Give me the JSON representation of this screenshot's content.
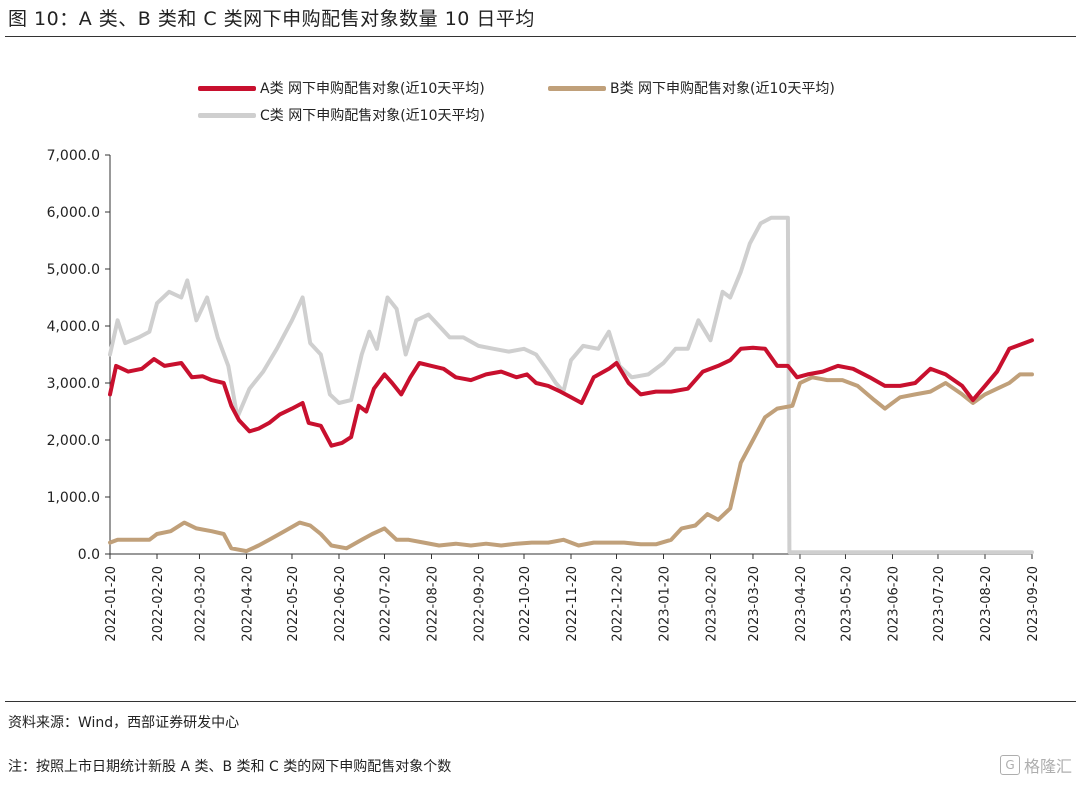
{
  "figure_title": "图 10：A 类、B 类和 C 类网下申购配售对象数量 10 日平均",
  "source_note": "资料来源：Wind，西部证券研发中心",
  "footnote": "注：按照上市日期统计新股 A 类、B 类和 C 类的网下申购配售对象个数",
  "watermark": "格隆汇",
  "watermark_badge": "G",
  "colors": {
    "A": "#c8102e",
    "B": "#c0a07a",
    "C": "#cfcfcf"
  },
  "chart_data": {
    "type": "line",
    "title": "",
    "xlabel": "",
    "ylabel": "",
    "ylim": [
      0,
      7000
    ],
    "y_ticks": [
      "0.0",
      "1,000.0",
      "2,000.0",
      "3,000.0",
      "4,000.0",
      "5,000.0",
      "6,000.0",
      "7,000.0"
    ],
    "y_tick_values": [
      0,
      1000,
      2000,
      3000,
      4000,
      5000,
      6000,
      7000
    ],
    "x_range": [
      "2022-01-20",
      "2023-09-20"
    ],
    "x_ticks": [
      "2022-01-20",
      "2022-02-20",
      "2022-03-20",
      "2022-04-20",
      "2022-05-20",
      "2022-06-20",
      "2022-07-20",
      "2022-08-20",
      "2022-09-20",
      "2022-10-20",
      "2022-11-20",
      "2022-12-20",
      "2023-01-20",
      "2023-02-20",
      "2023-03-20",
      "2023-04-20",
      "2023-05-20",
      "2023-06-20",
      "2023-07-20",
      "2023-08-20",
      "2023-09-20"
    ],
    "legend_position": "top",
    "series": [
      {
        "key": "A",
        "name": "A类  网下申购配售对象(近10天平均)",
        "points": [
          [
            "2022-01-20",
            2800
          ],
          [
            "2022-01-24",
            3300
          ],
          [
            "2022-02-01",
            3200
          ],
          [
            "2022-02-10",
            3250
          ],
          [
            "2022-02-18",
            3420
          ],
          [
            "2022-02-25",
            3300
          ],
          [
            "2022-03-08",
            3350
          ],
          [
            "2022-03-15",
            3100
          ],
          [
            "2022-03-22",
            3120
          ],
          [
            "2022-03-28",
            3050
          ],
          [
            "2022-04-05",
            3000
          ],
          [
            "2022-04-10",
            2600
          ],
          [
            "2022-04-15",
            2350
          ],
          [
            "2022-04-22",
            2150
          ],
          [
            "2022-04-28",
            2200
          ],
          [
            "2022-05-05",
            2300
          ],
          [
            "2022-05-12",
            2450
          ],
          [
            "2022-05-20",
            2550
          ],
          [
            "2022-05-27",
            2650
          ],
          [
            "2022-05-31",
            2300
          ],
          [
            "2022-06-08",
            2250
          ],
          [
            "2022-06-15",
            1900
          ],
          [
            "2022-06-22",
            1950
          ],
          [
            "2022-06-28",
            2050
          ],
          [
            "2022-07-03",
            2600
          ],
          [
            "2022-07-08",
            2500
          ],
          [
            "2022-07-13",
            2900
          ],
          [
            "2022-07-20",
            3150
          ],
          [
            "2022-07-25",
            3000
          ],
          [
            "2022-07-31",
            2800
          ],
          [
            "2022-08-06",
            3100
          ],
          [
            "2022-08-12",
            3350
          ],
          [
            "2022-08-20",
            3300
          ],
          [
            "2022-08-28",
            3250
          ],
          [
            "2022-09-05",
            3100
          ],
          [
            "2022-09-15",
            3050
          ],
          [
            "2022-09-25",
            3150
          ],
          [
            "2022-10-05",
            3200
          ],
          [
            "2022-10-15",
            3100
          ],
          [
            "2022-10-22",
            3150
          ],
          [
            "2022-10-28",
            3000
          ],
          [
            "2022-11-05",
            2950
          ],
          [
            "2022-11-13",
            2850
          ],
          [
            "2022-11-20",
            2750
          ],
          [
            "2022-11-27",
            2650
          ],
          [
            "2022-12-05",
            3100
          ],
          [
            "2022-12-15",
            3250
          ],
          [
            "2022-12-20",
            3350
          ],
          [
            "2022-12-28",
            3000
          ],
          [
            "2023-01-05",
            2800
          ],
          [
            "2023-01-15",
            2850
          ],
          [
            "2023-01-25",
            2850
          ],
          [
            "2023-02-05",
            2900
          ],
          [
            "2023-02-15",
            3200
          ],
          [
            "2023-02-25",
            3300
          ],
          [
            "2023-03-05",
            3400
          ],
          [
            "2023-03-12",
            3600
          ],
          [
            "2023-03-20",
            3620
          ],
          [
            "2023-03-28",
            3600
          ],
          [
            "2023-04-05",
            3300
          ],
          [
            "2023-04-12",
            3300
          ],
          [
            "2023-04-18",
            3100
          ],
          [
            "2023-04-25",
            3150
          ],
          [
            "2023-05-05",
            3200
          ],
          [
            "2023-05-15",
            3300
          ],
          [
            "2023-05-25",
            3250
          ],
          [
            "2023-06-05",
            3100
          ],
          [
            "2023-06-15",
            2950
          ],
          [
            "2023-06-25",
            2950
          ],
          [
            "2023-07-05",
            3000
          ],
          [
            "2023-07-15",
            3250
          ],
          [
            "2023-07-25",
            3150
          ],
          [
            "2023-08-05",
            2950
          ],
          [
            "2023-08-12",
            2700
          ],
          [
            "2023-08-20",
            2950
          ],
          [
            "2023-08-28",
            3200
          ],
          [
            "2023-09-05",
            3600
          ],
          [
            "2023-09-15",
            3700
          ],
          [
            "2023-09-20",
            3750
          ]
        ]
      },
      {
        "key": "B",
        "name": "B类  网下申购配售对象(近10天平均)",
        "points": [
          [
            "2022-01-20",
            200
          ],
          [
            "2022-01-25",
            250
          ],
          [
            "2022-02-05",
            250
          ],
          [
            "2022-02-15",
            250
          ],
          [
            "2022-02-20",
            350
          ],
          [
            "2022-03-01",
            400
          ],
          [
            "2022-03-10",
            550
          ],
          [
            "2022-03-18",
            450
          ],
          [
            "2022-03-28",
            400
          ],
          [
            "2022-04-05",
            350
          ],
          [
            "2022-04-10",
            100
          ],
          [
            "2022-04-20",
            50
          ],
          [
            "2022-04-28",
            150
          ],
          [
            "2022-05-05",
            250
          ],
          [
            "2022-05-15",
            400
          ],
          [
            "2022-05-25",
            550
          ],
          [
            "2022-06-01",
            500
          ],
          [
            "2022-06-08",
            350
          ],
          [
            "2022-06-15",
            150
          ],
          [
            "2022-06-25",
            100
          ],
          [
            "2022-07-05",
            250
          ],
          [
            "2022-07-12",
            350
          ],
          [
            "2022-07-20",
            450
          ],
          [
            "2022-07-28",
            250
          ],
          [
            "2022-08-05",
            250
          ],
          [
            "2022-08-15",
            200
          ],
          [
            "2022-08-25",
            150
          ],
          [
            "2022-09-05",
            180
          ],
          [
            "2022-09-15",
            150
          ],
          [
            "2022-09-25",
            180
          ],
          [
            "2022-10-05",
            150
          ],
          [
            "2022-10-15",
            180
          ],
          [
            "2022-10-25",
            200
          ],
          [
            "2022-11-05",
            200
          ],
          [
            "2022-11-15",
            250
          ],
          [
            "2022-11-25",
            150
          ],
          [
            "2022-12-05",
            200
          ],
          [
            "2022-12-15",
            200
          ],
          [
            "2022-12-25",
            200
          ],
          [
            "2023-01-05",
            170
          ],
          [
            "2023-01-15",
            170
          ],
          [
            "2023-01-25",
            250
          ],
          [
            "2023-02-01",
            450
          ],
          [
            "2023-02-10",
            500
          ],
          [
            "2023-02-18",
            700
          ],
          [
            "2023-02-25",
            600
          ],
          [
            "2023-03-05",
            800
          ],
          [
            "2023-03-12",
            1600
          ],
          [
            "2023-03-20",
            2000
          ],
          [
            "2023-03-28",
            2400
          ],
          [
            "2023-04-05",
            2550
          ],
          [
            "2023-04-15",
            2600
          ],
          [
            "2023-04-20",
            3000
          ],
          [
            "2023-04-28",
            3100
          ],
          [
            "2023-05-08",
            3050
          ],
          [
            "2023-05-18",
            3050
          ],
          [
            "2023-05-28",
            2950
          ],
          [
            "2023-06-08",
            2700
          ],
          [
            "2023-06-15",
            2550
          ],
          [
            "2023-06-25",
            2750
          ],
          [
            "2023-07-05",
            2800
          ],
          [
            "2023-07-15",
            2850
          ],
          [
            "2023-07-25",
            3000
          ],
          [
            "2023-08-05",
            2800
          ],
          [
            "2023-08-12",
            2650
          ],
          [
            "2023-08-20",
            2800
          ],
          [
            "2023-08-28",
            2900
          ],
          [
            "2023-09-05",
            3000
          ],
          [
            "2023-09-12",
            3150
          ],
          [
            "2023-09-20",
            3150
          ]
        ]
      },
      {
        "key": "C",
        "name": "C类  网下申购配售对象(近10天平均)",
        "points": [
          [
            "2022-01-20",
            3500
          ],
          [
            "2022-01-25",
            4100
          ],
          [
            "2022-01-30",
            3700
          ],
          [
            "2022-02-08",
            3800
          ],
          [
            "2022-02-15",
            3900
          ],
          [
            "2022-02-20",
            4400
          ],
          [
            "2022-02-28",
            4600
          ],
          [
            "2022-03-08",
            4500
          ],
          [
            "2022-03-12",
            4800
          ],
          [
            "2022-03-18",
            4100
          ],
          [
            "2022-03-25",
            4500
          ],
          [
            "2022-04-01",
            3800
          ],
          [
            "2022-04-08",
            3300
          ],
          [
            "2022-04-14",
            2400
          ],
          [
            "2022-04-22",
            2900
          ],
          [
            "2022-05-01",
            3200
          ],
          [
            "2022-05-10",
            3600
          ],
          [
            "2022-05-20",
            4100
          ],
          [
            "2022-05-27",
            4500
          ],
          [
            "2022-06-01",
            3700
          ],
          [
            "2022-06-08",
            3500
          ],
          [
            "2022-06-14",
            2800
          ],
          [
            "2022-06-20",
            2650
          ],
          [
            "2022-06-28",
            2700
          ],
          [
            "2022-07-05",
            3500
          ],
          [
            "2022-07-10",
            3900
          ],
          [
            "2022-07-15",
            3600
          ],
          [
            "2022-07-22",
            4500
          ],
          [
            "2022-07-28",
            4300
          ],
          [
            "2022-08-03",
            3500
          ],
          [
            "2022-08-10",
            4100
          ],
          [
            "2022-08-18",
            4200
          ],
          [
            "2022-08-25",
            4000
          ],
          [
            "2022-09-01",
            3800
          ],
          [
            "2022-09-10",
            3800
          ],
          [
            "2022-09-20",
            3650
          ],
          [
            "2022-09-30",
            3600
          ],
          [
            "2022-10-10",
            3550
          ],
          [
            "2022-10-20",
            3600
          ],
          [
            "2022-10-28",
            3500
          ],
          [
            "2022-11-05",
            3200
          ],
          [
            "2022-11-10",
            3000
          ],
          [
            "2022-11-15",
            2850
          ],
          [
            "2022-11-20",
            3400
          ],
          [
            "2022-11-28",
            3650
          ],
          [
            "2022-12-08",
            3600
          ],
          [
            "2022-12-15",
            3900
          ],
          [
            "2022-12-22",
            3300
          ],
          [
            "2022-12-30",
            3100
          ],
          [
            "2023-01-10",
            3150
          ],
          [
            "2023-01-20",
            3350
          ],
          [
            "2023-01-28",
            3600
          ],
          [
            "2023-02-05",
            3600
          ],
          [
            "2023-02-12",
            4100
          ],
          [
            "2023-02-20",
            3750
          ],
          [
            "2023-02-28",
            4600
          ],
          [
            "2023-03-05",
            4500
          ],
          [
            "2023-03-12",
            4950
          ],
          [
            "2023-03-18",
            5450
          ],
          [
            "2023-03-25",
            5800
          ],
          [
            "2023-04-01",
            5900
          ],
          [
            "2023-04-10",
            5900
          ],
          [
            "2023-04-12",
            5900
          ],
          [
            "2023-04-13",
            30
          ],
          [
            "2023-09-20",
            30
          ]
        ]
      }
    ]
  }
}
